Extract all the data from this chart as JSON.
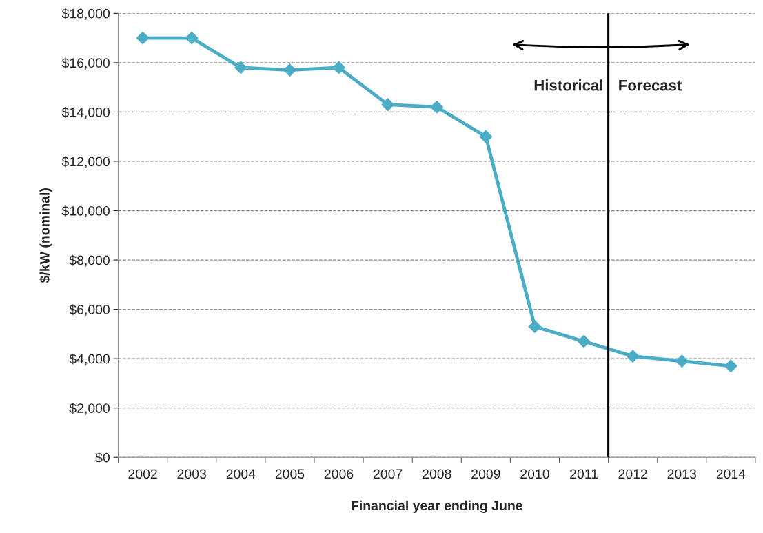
{
  "chart_data": {
    "type": "line",
    "xlabel": "Financial year ending June",
    "ylabel": "$/kW (nominal)",
    "x": [
      2002,
      2003,
      2004,
      2005,
      2006,
      2007,
      2008,
      2009,
      2010,
      2011,
      2012,
      2013,
      2014
    ],
    "series": [
      {
        "color": "#4bacc6",
        "values": [
          17000,
          17000,
          15800,
          15700,
          15800,
          14300,
          14200,
          13000,
          5300,
          4700,
          4100,
          3900,
          3700
        ]
      }
    ],
    "xlim": [
      2001.5,
      2014.5
    ],
    "xticks": [
      2002,
      2003,
      2004,
      2005,
      2006,
      2007,
      2008,
      2009,
      2010,
      2011,
      2012,
      2013,
      2014,
      {
        "value": 2001.5,
        "label": null
      },
      {
        "value": 2002.5,
        "label": null
      },
      {
        "value": 2003.5,
        "label": null
      },
      {
        "value": 2004.5,
        "label": null
      },
      {
        "value": 2005.5,
        "label": null
      },
      {
        "value": 2006.5,
        "label": null
      },
      {
        "value": 2007.5,
        "label": null
      },
      {
        "value": 2008.5,
        "label": null
      },
      {
        "value": 2009.5,
        "label": null
      },
      {
        "value": 2010.5,
        "label": null
      },
      {
        "value": 2011.5,
        "label": null
      },
      {
        "value": 2012.5,
        "label": null
      },
      {
        "value": 2013.5,
        "label": null
      },
      {
        "value": 2014.5,
        "label": null
      }
    ],
    "ylim": [
      0,
      18000
    ],
    "yticks": [
      {
        "value": 0,
        "label": "$0"
      },
      {
        "value": 2000,
        "label": "$2,000"
      },
      {
        "value": 4000,
        "label": "$4,000"
      },
      {
        "value": 6000,
        "label": "$6,000"
      },
      {
        "value": 8000,
        "label": "$8,000"
      },
      {
        "value": 10000,
        "label": "$10,000"
      },
      {
        "value": 12000,
        "label": "$12,000"
      },
      {
        "value": 14000,
        "label": "$14,000"
      },
      {
        "value": 16000,
        "label": "$16,000"
      },
      {
        "value": 18000,
        "label": "$18,000"
      }
    ],
    "ref_lines": [
      {
        "axis": "x",
        "value": 2011.5,
        "color": "#000000",
        "line_style": "solid"
      }
    ],
    "annotations": [
      "Historical",
      "Forecast"
    ],
    "grid": "y",
    "legend": false,
    "marker": "diamond",
    "line_style": "solid"
  }
}
